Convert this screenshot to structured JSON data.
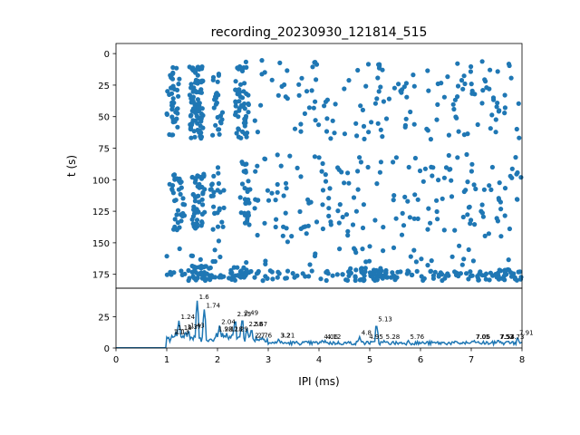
{
  "chart_data": [
    {
      "type": "scatter",
      "title": "recording_20230930_121814_515",
      "xlabel": "",
      "ylabel": "t (s)",
      "xlim": [
        0,
        8
      ],
      "ylim": [
        186,
        -8
      ],
      "y_inverted": true,
      "yticks": [
        "0",
        "25",
        "50",
        "75",
        "100",
        "125",
        "150",
        "175"
      ],
      "color": "#1f77b4",
      "grid": false,
      "seed": 515
    },
    {
      "type": "line",
      "title": "",
      "xlabel": "IPI (ms)",
      "ylabel": "",
      "xlim": [
        0,
        8
      ],
      "ylim": [
        0,
        48
      ],
      "xticks": [
        "0",
        "1",
        "2",
        "3",
        "4",
        "5",
        "6",
        "7",
        "8"
      ],
      "yticks": [
        "0",
        "25"
      ],
      "color": "#1f77b4",
      "grid": false,
      "peak_labels": [
        {
          "x": 1.1,
          "y": 10,
          "text": "1.1"
        },
        {
          "x": 1.13,
          "y": 10,
          "text": "1.13"
        },
        {
          "x": 1.18,
          "y": 13,
          "text": "1.18"
        },
        {
          "x": 1.24,
          "y": 22,
          "text": "1.24"
        },
        {
          "x": 1.37,
          "y": 14,
          "text": "1.37"
        },
        {
          "x": 1.43,
          "y": 15,
          "text": "1.43"
        },
        {
          "x": 1.6,
          "y": 38,
          "text": "1.6"
        },
        {
          "x": 1.74,
          "y": 31,
          "text": "1.74"
        },
        {
          "x": 1.98,
          "y": 12,
          "text": "1.98"
        },
        {
          "x": 2.04,
          "y": 18,
          "text": "2.04"
        },
        {
          "x": 2.1,
          "y": 12,
          "text": "2.1"
        },
        {
          "x": 2.18,
          "y": 12,
          "text": "2.18"
        },
        {
          "x": 2.29,
          "y": 12,
          "text": "2.29"
        },
        {
          "x": 2.35,
          "y": 24,
          "text": "2.35"
        },
        {
          "x": 2.49,
          "y": 25,
          "text": "2.49"
        },
        {
          "x": 2.58,
          "y": 16,
          "text": "2.58"
        },
        {
          "x": 2.67,
          "y": 16,
          "text": "2.67"
        },
        {
          "x": 2.7,
          "y": 7,
          "text": "2.7"
        },
        {
          "x": 2.76,
          "y": 7,
          "text": "2.76"
        },
        {
          "x": 3.2,
          "y": 7,
          "text": "3.2"
        },
        {
          "x": 3.21,
          "y": 7,
          "text": "3.21"
        },
        {
          "x": 4.06,
          "y": 6,
          "text": "4.06"
        },
        {
          "x": 4.12,
          "y": 6,
          "text": "4.12"
        },
        {
          "x": 4.8,
          "y": 9,
          "text": "4.8"
        },
        {
          "x": 4.95,
          "y": 6,
          "text": "4.95"
        },
        {
          "x": 5.13,
          "y": 20,
          "text": "5.13"
        },
        {
          "x": 5.28,
          "y": 6,
          "text": "5.28"
        },
        {
          "x": 5.76,
          "y": 6,
          "text": "5.76"
        },
        {
          "x": 7.05,
          "y": 6,
          "text": "7.05"
        },
        {
          "x": 7.06,
          "y": 6,
          "text": "7.06"
        },
        {
          "x": 7.52,
          "y": 6,
          "text": "7.52"
        },
        {
          "x": 7.53,
          "y": 6,
          "text": "7.53"
        },
        {
          "x": 7.54,
          "y": 6,
          "text": "7.54"
        },
        {
          "x": 7.73,
          "y": 6,
          "text": "7.73"
        },
        {
          "x": 7.91,
          "y": 9,
          "text": "7.91"
        }
      ]
    }
  ]
}
